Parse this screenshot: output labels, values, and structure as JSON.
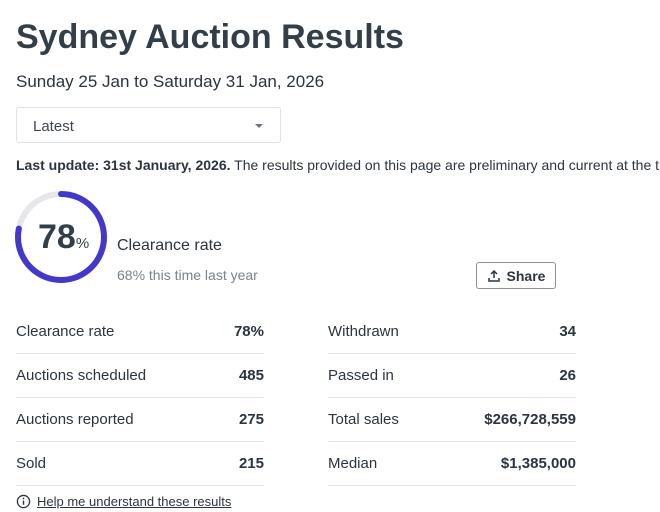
{
  "title": "Sydney Auction Results",
  "date_range": "Sunday 25 Jan to Saturday 31 Jan, 2026",
  "period_select": {
    "selected": "Latest"
  },
  "update": {
    "bold": "Last update: 31st January, 2026.",
    "text": " The results provided on this page are preliminary and current at the t"
  },
  "clearance": {
    "value": "78",
    "unit": "%",
    "fraction": 0.78,
    "label": "Clearance rate",
    "last_year": "68% this time last year",
    "ring_color": "#4338ca"
  },
  "share_label": "Share",
  "stats_left": [
    {
      "label": "Clearance rate",
      "value": "78%"
    },
    {
      "label": "Auctions scheduled",
      "value": "485"
    },
    {
      "label": "Auctions reported",
      "value": "275"
    },
    {
      "label": "Sold",
      "value": "215"
    }
  ],
  "stats_right": [
    {
      "label": "Withdrawn",
      "value": "34"
    },
    {
      "label": "Passed in",
      "value": "26"
    },
    {
      "label": "Total sales",
      "value": "$266,728,559"
    },
    {
      "label": "Median",
      "value": "$1,385,000"
    }
  ],
  "help_link": "Help me understand these results"
}
